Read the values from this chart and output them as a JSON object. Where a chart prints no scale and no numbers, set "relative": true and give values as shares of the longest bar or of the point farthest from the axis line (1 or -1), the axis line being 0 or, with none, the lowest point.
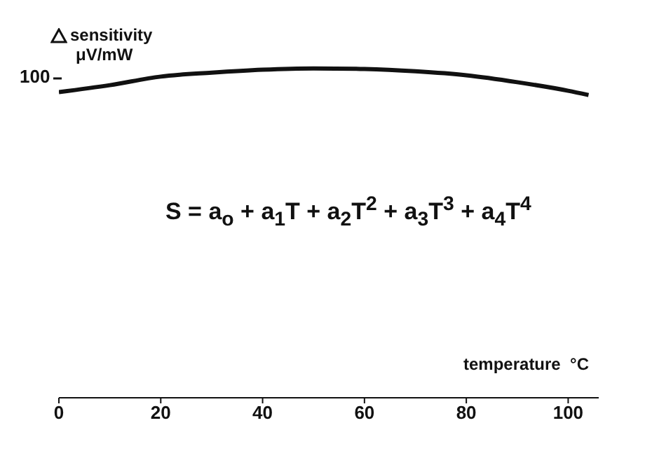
{
  "chart_data": {
    "type": "line",
    "relative": true,
    "xlabel": "temperature  °C",
    "ylabel": "sensitivity\nμV/mW",
    "x": [
      0,
      10,
      20,
      30,
      40,
      50,
      60,
      70,
      80,
      90,
      100,
      104
    ],
    "series": [
      {
        "color": "#111111",
        "values": [
          0.928,
          0.949,
          0.975,
          0.987,
          0.996,
          1,
          0.998,
          0.991,
          0.979,
          0.958,
          0.932,
          0.919
        ]
      }
    ],
    "xlim": [
      0,
      106
    ],
    "xticks": [
      0,
      20,
      40,
      60,
      80,
      100
    ],
    "annotations": [
      "100",
      "S = a$_{o}$ + a$_{1}$T + a$_{2}$T$^{2}$ + a$_{3}$T$^{3}$ + a$_{4}$T$^{4}$"
    ],
    "grid": false,
    "legend": false,
    "marker": "none",
    "line_style": "solid"
  }
}
